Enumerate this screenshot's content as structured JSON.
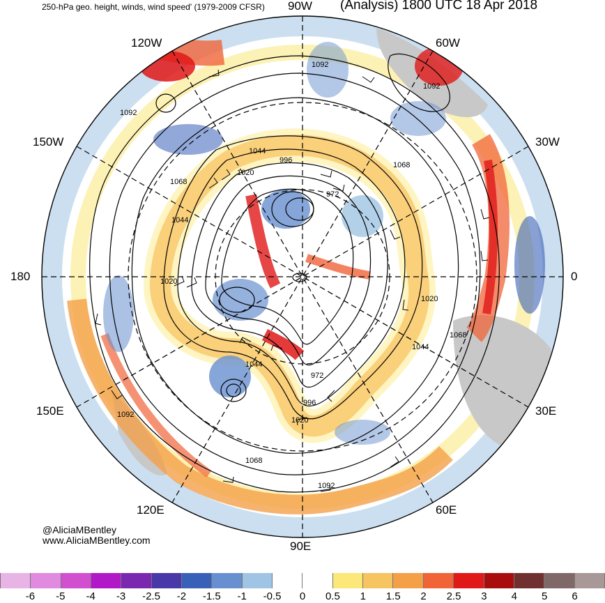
{
  "header": {
    "left_title": "250-hPa geo. height, winds, wind speed' (1979-2009 CFSR)",
    "right_title": "(Analysis) 1800 UTC 18 Apr 2018"
  },
  "longitude_labels": {
    "top": "90W",
    "top_left": "120W",
    "top_right": "60W",
    "upper_left": "150W",
    "upper_right": "30W",
    "left": "180",
    "right": "0",
    "lower_left": "150E",
    "lower_right": "30E",
    "bottom_left": "120E",
    "bottom_right": "60E",
    "bottom": "90E"
  },
  "contour_labels": [
    "1092",
    "1092",
    "1092",
    "1092",
    "1092",
    "1068",
    "1068",
    "1068",
    "1068",
    "1044",
    "1044",
    "1044",
    "1044",
    "1020",
    "1020",
    "1020",
    "1020",
    "996",
    "996",
    "972",
    "972"
  ],
  "credits": {
    "line1": "@AliciaMBentley",
    "line2": "www.AliciaMBentley.com"
  },
  "colorbar": {
    "colors": [
      "#e8b4e6",
      "#e08ae0",
      "#d050d0",
      "#b018c8",
      "#7a28b0",
      "#4838a8",
      "#3860b8",
      "#6890d0",
      "#a0c4e4",
      "#ffffff",
      "#ffffff",
      "#fce878",
      "#f6c460",
      "#f4a048",
      "#f06438",
      "#e01818",
      "#a80c0c",
      "#703030",
      "#806868",
      "#a89898"
    ],
    "tick_labels": [
      "-6",
      "-5",
      "-4",
      "-3",
      "-2.5",
      "-2",
      "-1.5",
      "-1",
      "-0.5",
      "0",
      "0.5",
      "1",
      "1.5",
      "2",
      "2.5",
      "3",
      "4",
      "5",
      "6"
    ]
  }
}
